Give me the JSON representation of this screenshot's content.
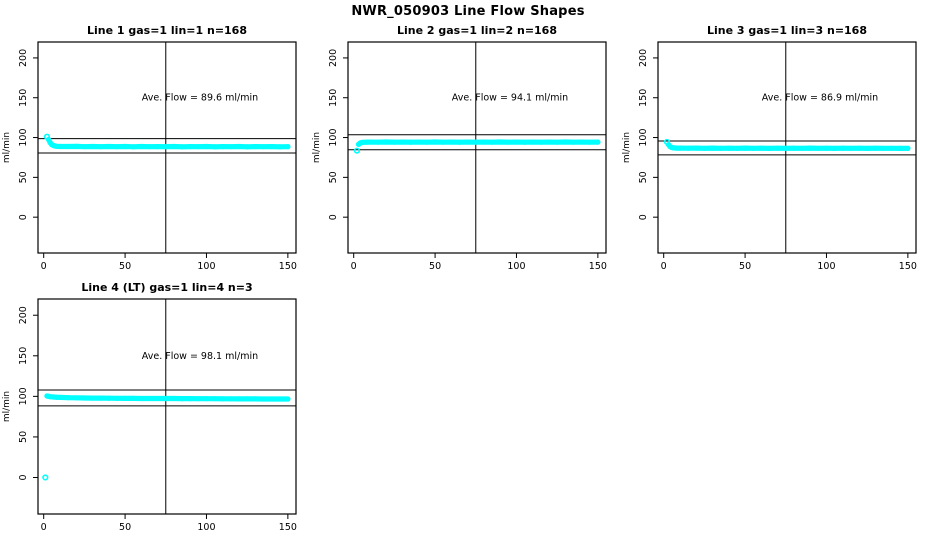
{
  "title": "NWR_050903  Line Flow Shapes",
  "colors": {
    "point": "#00FFFF",
    "axis": "#000000",
    "background": "#FFFFFF"
  },
  "chart_data": [
    {
      "type": "scatter",
      "title": "Line 1 gas=1 lin=1 n=168",
      "annotation": "Ave. Flow =  89.6  ml/min",
      "avg_flow": 89.6,
      "avg_flow_units": "ml/min",
      "xlabel": "",
      "ylabel": "ml/min",
      "xticks": [
        0,
        50,
        100,
        150
      ],
      "yticks": [
        0,
        50,
        100,
        150,
        200
      ],
      "xlim": [
        -3.5,
        155
      ],
      "ylim": [
        -45,
        220
      ],
      "grid": false,
      "hlines": [
        98.6,
        80.6
      ],
      "vline_x": 75,
      "lead_points": [
        [
          2,
          101
        ]
      ],
      "series": [
        [
          3,
          97.5
        ],
        [
          4,
          93.5
        ],
        [
          5,
          91
        ],
        [
          6,
          90
        ],
        [
          7,
          89.3
        ],
        [
          8,
          89
        ],
        [
          10,
          88.8
        ],
        [
          15,
          88.7
        ],
        [
          20,
          88.9
        ],
        [
          25,
          88.5
        ],
        [
          30,
          88.8
        ],
        [
          35,
          88.5
        ],
        [
          40,
          88.7
        ],
        [
          45,
          88.5
        ],
        [
          50,
          88.8
        ],
        [
          55,
          88.4
        ],
        [
          60,
          88.7
        ],
        [
          65,
          88.5
        ],
        [
          70,
          88.6
        ],
        [
          75,
          88.5
        ],
        [
          80,
          88.7
        ],
        [
          85,
          88.4
        ],
        [
          90,
          88.6
        ],
        [
          95,
          88.5
        ],
        [
          100,
          88.7
        ],
        [
          105,
          88.4
        ],
        [
          110,
          88.6
        ],
        [
          115,
          88.5
        ],
        [
          120,
          88.7
        ],
        [
          125,
          88.4
        ],
        [
          130,
          88.6
        ],
        [
          135,
          88.5
        ],
        [
          140,
          88.6
        ],
        [
          145,
          88.4
        ],
        [
          150,
          88.5
        ]
      ]
    },
    {
      "type": "scatter",
      "title": "Line 2 gas=1 lin=2 n=168",
      "annotation": "Ave. Flow =  94.1  ml/min",
      "avg_flow": 94.1,
      "avg_flow_units": "ml/min",
      "xlabel": "",
      "ylabel": "ml/min",
      "xticks": [
        0,
        50,
        100,
        150
      ],
      "yticks": [
        0,
        50,
        100,
        150,
        200
      ],
      "xlim": [
        -3.5,
        155
      ],
      "ylim": [
        -45,
        220
      ],
      "grid": false,
      "hlines": [
        103.5,
        84.7
      ],
      "vline_x": 75,
      "lead_points": [
        [
          2,
          83.5
        ]
      ],
      "series": [
        [
          3,
          91.5
        ],
        [
          4,
          93.2
        ],
        [
          5,
          93.8
        ],
        [
          6,
          94
        ],
        [
          8,
          94.2
        ],
        [
          10,
          94.3
        ],
        [
          15,
          94.2
        ],
        [
          20,
          94.4
        ],
        [
          25,
          94.2
        ],
        [
          30,
          94.3
        ],
        [
          35,
          94.1
        ],
        [
          40,
          94.3
        ],
        [
          45,
          94.2
        ],
        [
          50,
          94.4
        ],
        [
          55,
          94.2
        ],
        [
          60,
          94.3
        ],
        [
          65,
          94.1
        ],
        [
          70,
          94.3
        ],
        [
          75,
          94.2
        ],
        [
          80,
          94.3
        ],
        [
          85,
          94.2
        ],
        [
          90,
          94.4
        ],
        [
          95,
          94.2
        ],
        [
          100,
          94.3
        ],
        [
          105,
          94.1
        ],
        [
          110,
          94.3
        ],
        [
          115,
          94.2
        ],
        [
          120,
          94.3
        ],
        [
          125,
          94.2
        ],
        [
          130,
          94.4
        ],
        [
          135,
          94.2
        ],
        [
          140,
          94.3
        ],
        [
          145,
          94.2
        ],
        [
          150,
          94.3
        ]
      ]
    },
    {
      "type": "scatter",
      "title": "Line 3 gas=1 lin=3 n=168",
      "annotation": "Ave. Flow =  86.9  ml/min",
      "avg_flow": 86.9,
      "avg_flow_units": "ml/min",
      "xlabel": "",
      "ylabel": "ml/min",
      "xticks": [
        0,
        50,
        100,
        150
      ],
      "yticks": [
        0,
        50,
        100,
        150,
        200
      ],
      "xlim": [
        -3.5,
        155
      ],
      "ylim": [
        -45,
        220
      ],
      "grid": false,
      "hlines": [
        95.6,
        78.2
      ],
      "vline_x": 75,
      "lead_points": [
        [
          2,
          94.5
        ]
      ],
      "series": [
        [
          3,
          91
        ],
        [
          4,
          88.5
        ],
        [
          5,
          87.5
        ],
        [
          6,
          87
        ],
        [
          8,
          86.8
        ],
        [
          10,
          86.7
        ],
        [
          15,
          86.6
        ],
        [
          20,
          86.7
        ],
        [
          25,
          86.5
        ],
        [
          30,
          86.7
        ],
        [
          35,
          86.5
        ],
        [
          40,
          86.6
        ],
        [
          45,
          86.5
        ],
        [
          50,
          86.7
        ],
        [
          55,
          86.5
        ],
        [
          60,
          86.6
        ],
        [
          65,
          86.4
        ],
        [
          70,
          86.6
        ],
        [
          75,
          86.5
        ],
        [
          80,
          86.6
        ],
        [
          85,
          86.5
        ],
        [
          90,
          86.7
        ],
        [
          95,
          86.5
        ],
        [
          100,
          86.6
        ],
        [
          105,
          86.4
        ],
        [
          110,
          86.6
        ],
        [
          115,
          86.5
        ],
        [
          120,
          86.6
        ],
        [
          125,
          86.4
        ],
        [
          130,
          86.6
        ],
        [
          135,
          86.5
        ],
        [
          140,
          86.5
        ],
        [
          145,
          86.4
        ],
        [
          150,
          86.5
        ]
      ]
    },
    {
      "type": "scatter",
      "title": "Line 4 (LT) gas=1 lin=4 n=3",
      "annotation": "Ave. Flow =  98.1  ml/min",
      "avg_flow": 98.1,
      "avg_flow_units": "ml/min",
      "xlabel": "",
      "ylabel": "ml/min",
      "xticks": [
        0,
        50,
        100,
        150
      ],
      "yticks": [
        0,
        50,
        100,
        150,
        200
      ],
      "xlim": [
        -3.5,
        155
      ],
      "ylim": [
        -45,
        220
      ],
      "grid": false,
      "hlines": [
        107.9,
        88.3
      ],
      "vline_x": 75,
      "lead_points": [
        [
          1,
          0
        ]
      ],
      "series": [
        [
          2,
          100.5
        ],
        [
          3,
          100
        ],
        [
          4,
          99.6
        ],
        [
          6,
          99.2
        ],
        [
          8,
          98.9
        ],
        [
          10,
          98.7
        ],
        [
          15,
          98.4
        ],
        [
          20,
          98.2
        ],
        [
          25,
          98
        ],
        [
          30,
          97.9
        ],
        [
          35,
          97.8
        ],
        [
          40,
          97.7
        ],
        [
          45,
          97.6
        ],
        [
          50,
          97.5
        ],
        [
          55,
          97.5
        ],
        [
          60,
          97.4
        ],
        [
          65,
          97.4
        ],
        [
          70,
          97.3
        ],
        [
          75,
          97.3
        ],
        [
          80,
          97.3
        ],
        [
          85,
          97.2
        ],
        [
          90,
          97.2
        ],
        [
          95,
          97.1
        ],
        [
          100,
          97.1
        ],
        [
          105,
          97.1
        ],
        [
          110,
          97
        ],
        [
          115,
          97
        ],
        [
          120,
          96.9
        ],
        [
          125,
          96.9
        ],
        [
          130,
          96.9
        ],
        [
          135,
          96.8
        ],
        [
          140,
          96.8
        ],
        [
          145,
          96.8
        ],
        [
          150,
          96.7
        ]
      ]
    }
  ]
}
